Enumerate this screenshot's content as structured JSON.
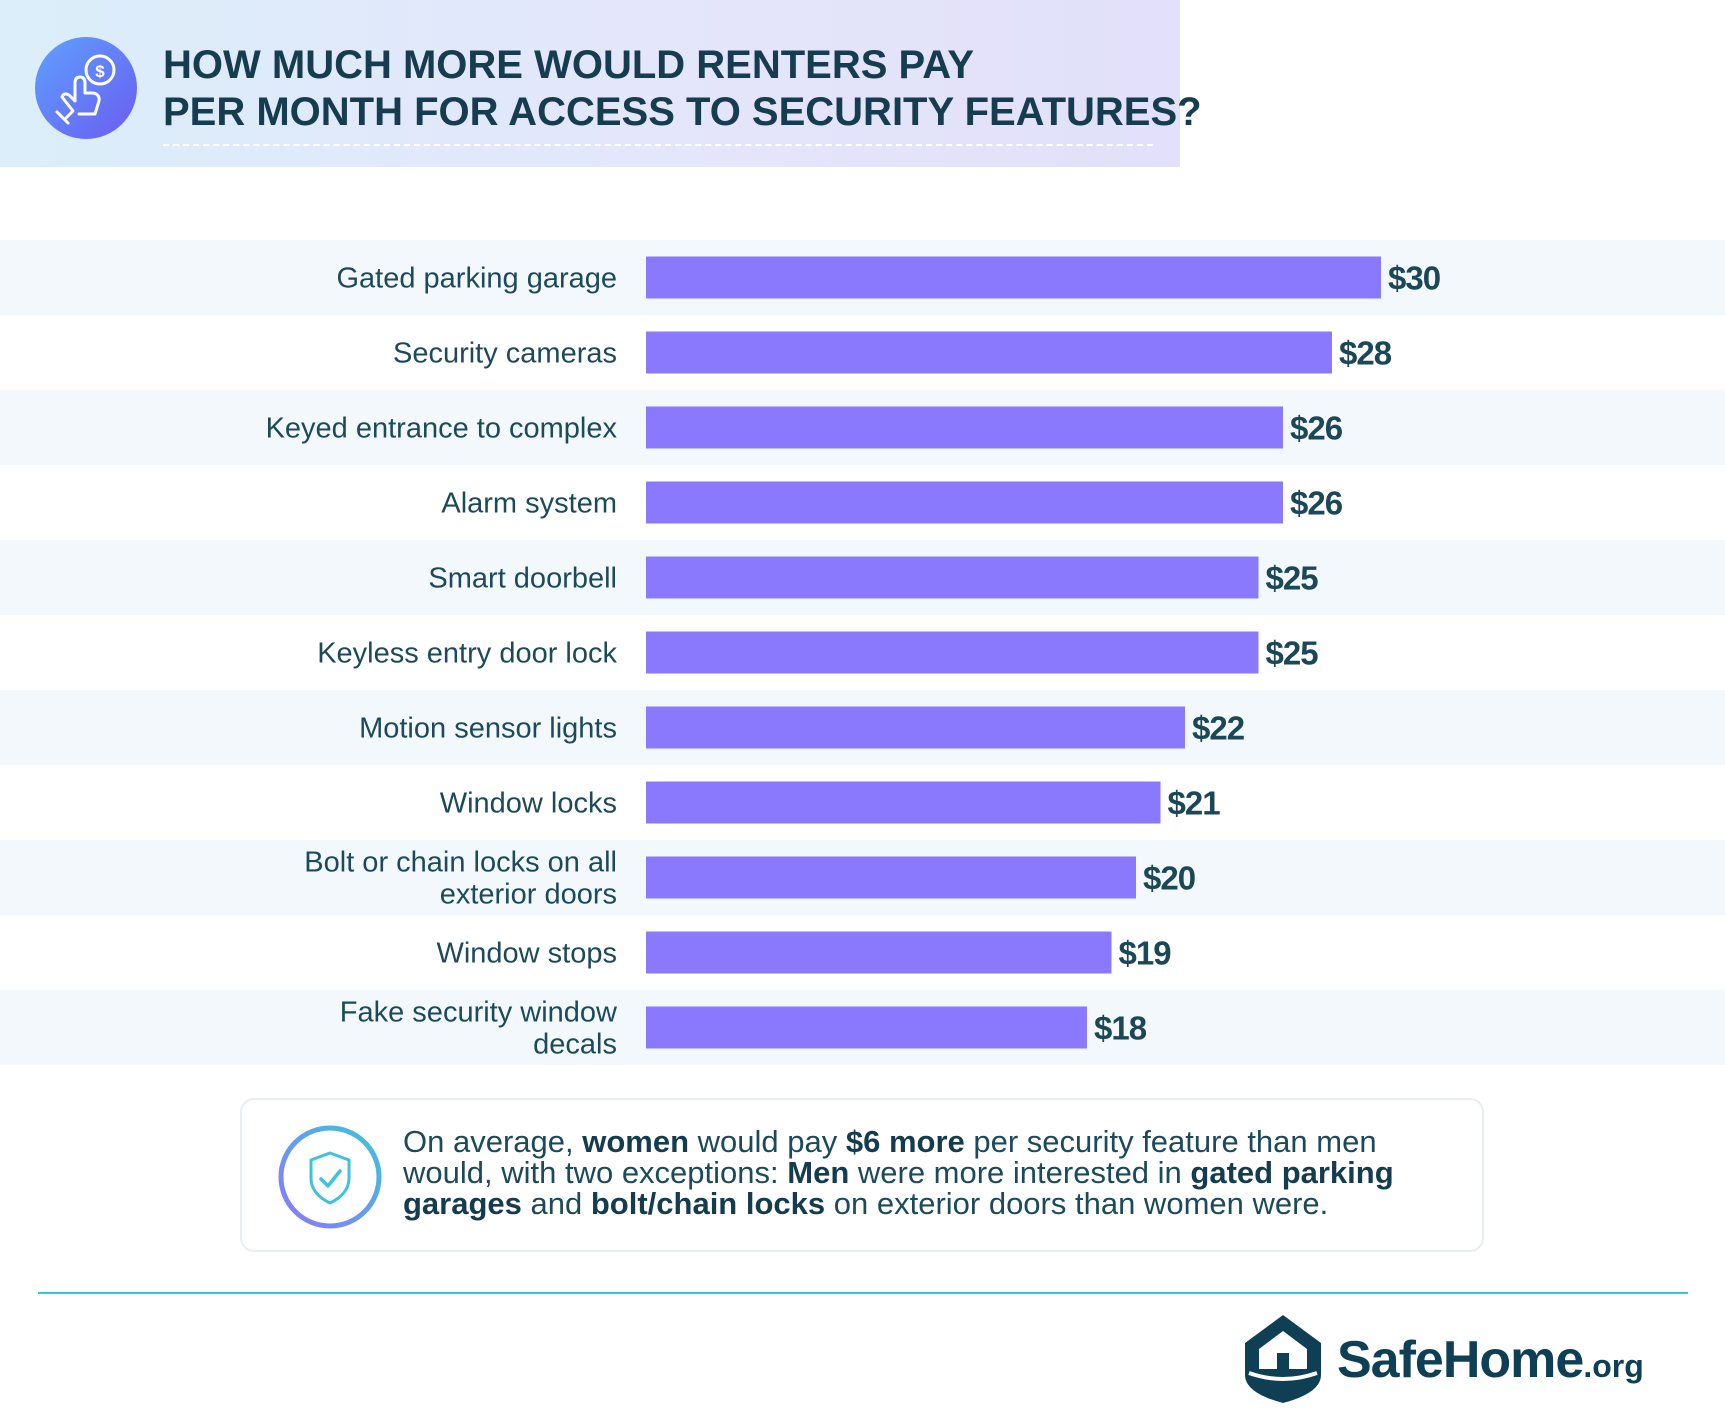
{
  "header": {
    "title_line1": "HOW MUCH MORE WOULD RENTERS PAY",
    "title_line2": "PER MONTH FOR ACCESS TO SECURITY FEATURES?"
  },
  "chart_data": {
    "type": "bar",
    "orientation": "horizontal",
    "categories": [
      [
        "Gated parking garage"
      ],
      [
        "Security cameras"
      ],
      [
        "Keyed entrance to complex"
      ],
      [
        "Alarm system"
      ],
      [
        "Smart doorbell"
      ],
      [
        "Keyless entry door lock"
      ],
      [
        "Motion sensor lights"
      ],
      [
        "Window locks"
      ],
      [
        "Bolt or chain locks on all",
        "exterior doors"
      ],
      [
        "Window stops"
      ],
      [
        "Fake security window",
        "decals"
      ]
    ],
    "values": [
      30,
      28,
      26,
      26,
      25,
      25,
      22,
      21,
      20,
      19,
      18
    ],
    "value_labels": [
      "$30",
      "$28",
      "$26",
      "$26",
      "$25",
      "$25",
      "$22",
      "$21",
      "$20",
      "$19",
      "$18"
    ],
    "xlim": [
      0,
      30
    ],
    "grid": false,
    "legend": "none",
    "bar_color": "#8a79fc",
    "stripe_color": "#f2f8fb"
  },
  "callout": {
    "text_parts": [
      {
        "t": "On average, ",
        "b": false
      },
      {
        "t": "women",
        "b": true
      },
      {
        "t": " would pay ",
        "b": false
      },
      {
        "t": "$6 more",
        "b": true
      },
      {
        "t": " per security feature than men would, with two exceptions: ",
        "b": false
      },
      {
        "t": "Men",
        "b": true
      },
      {
        "t": " were more interested in ",
        "b": false
      },
      {
        "t": "gated parking garages",
        "b": true
      },
      {
        "t": " and ",
        "b": false
      },
      {
        "t": "bolt/chain locks",
        "b": true
      },
      {
        "t": " on exterior doors than women were.",
        "b": false
      }
    ],
    "icon": "shield-check-icon"
  },
  "header_icon": "hand-coin-icon",
  "logo": {
    "name": "SafeHome",
    "suffix": ".org",
    "icon": "house-icon"
  },
  "colors": {
    "title": "#163c4f",
    "accent_line": "#3ec3dc",
    "bar": "#8a79fc"
  }
}
